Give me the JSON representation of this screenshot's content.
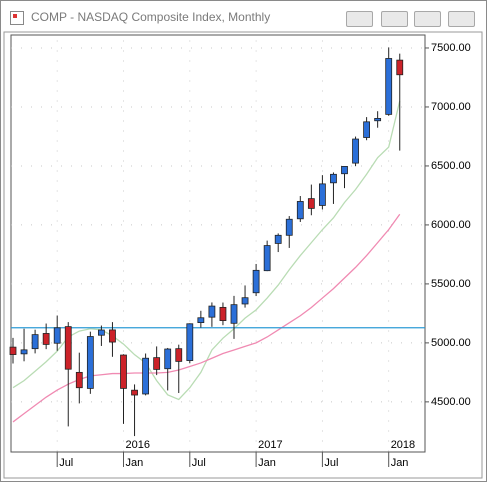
{
  "window_title": "COMP - NASDAQ Composite Index, Monthly",
  "chart_data": {
    "type": "candlestick",
    "categories": [
      null,
      null,
      null,
      null,
      "Jul",
      null,
      null,
      null,
      null,
      null,
      "Jan",
      null,
      null,
      null,
      null,
      null,
      "Jul",
      null,
      null,
      null,
      null,
      null,
      "Jan",
      null,
      null,
      null,
      null,
      null,
      "Jul",
      null,
      null,
      null,
      null,
      null,
      "Jan",
      null
    ],
    "year_labels": [
      "2016",
      "2017",
      "2018"
    ],
    "open": [
      4964,
      4907,
      4951,
      5080,
      4997,
      5138,
      4750,
      4614,
      5065,
      5110,
      4897,
      4599,
      4567,
      4875,
      4781,
      4951,
      4850,
      5172,
      5218,
      5301,
      5166,
      5330,
      5425,
      5612,
      5843,
      5912,
      6052,
      6223,
      6165,
      6357,
      6434,
      6524,
      6741,
      6883,
      6937,
      7397
    ],
    "high": [
      5042,
      5120,
      5112,
      5164,
      5232,
      5176,
      4917,
      5095,
      5147,
      5176,
      4904,
      4648,
      4910,
      4970,
      4957,
      4985,
      5166,
      5272,
      5343,
      5342,
      5399,
      5487,
      5669,
      5867,
      5928,
      6075,
      6245,
      6342,
      6422,
      6445,
      6496,
      6749,
      6914,
      6964,
      7505,
      7452
    ],
    "low": [
      4825,
      4844,
      4911,
      4947,
      4933,
      4292,
      4487,
      4568,
      4974,
      4882,
      4313,
      4210,
      4555,
      4727,
      4597,
      4575,
      4827,
      5129,
      5136,
      5150,
      5034,
      5299,
      5397,
      5608,
      5770,
      5805,
      6025,
      6082,
      6131,
      6178,
      6312,
      6498,
      6718,
      6824,
      6925,
      6630
    ],
    "close": [
      4901,
      4941,
      5070,
      4987,
      5128,
      4777,
      4620,
      5054,
      5109,
      5007,
      4614,
      4558,
      4870,
      4775,
      4948,
      4843,
      5162,
      5213,
      5312,
      5189,
      5324,
      5383,
      5615,
      5825,
      5912,
      6048,
      6199,
      6140,
      6348,
      6429,
      6496,
      6728,
      6874,
      6903,
      7411,
      7273
    ],
    "up_color": "#2b6fd8",
    "down_color": "#cc2229",
    "moving_averages": [
      {
        "color": "#b9dcb4",
        "values": [
          4620,
          4680,
          4760,
          4840,
          4930,
          5050,
          5100,
          5120,
          5110,
          5060,
          4990,
          4900,
          4830,
          4680,
          4560,
          4520,
          4620,
          4750,
          4940,
          5040,
          5120,
          5210,
          5280,
          5380,
          5490,
          5620,
          5740,
          5850,
          5960,
          6060,
          6190,
          6300,
          6430,
          6570,
          6660,
          7050
        ]
      },
      {
        "color": "#f08ab2",
        "values": [
          4330,
          4400,
          4470,
          4540,
          4600,
          4650,
          4690,
          4720,
          4730,
          4740,
          4740,
          4745,
          4745,
          4745,
          4750,
          4770,
          4800,
          4830,
          4870,
          4910,
          4940,
          4970,
          5000,
          5050,
          5110,
          5170,
          5230,
          5300,
          5380,
          5460,
          5550,
          5640,
          5740,
          5850,
          5960,
          6090
        ]
      }
    ],
    "reference_line": {
      "value": 5128,
      "color": "#2e9bd6"
    },
    "ylim": [
      4075,
      7610
    ],
    "yticks": [
      {
        "value": 4500,
        "label": "4500.00"
      },
      {
        "value": 5000,
        "label": "5000.00"
      },
      {
        "value": 5500,
        "label": "5500.00"
      },
      {
        "value": 6000,
        "label": "6000.00"
      },
      {
        "value": 6500,
        "label": "6500.00"
      },
      {
        "value": 7000,
        "label": "7000.00"
      },
      {
        "value": 7500,
        "label": "7500.00"
      }
    ],
    "grid": true
  }
}
